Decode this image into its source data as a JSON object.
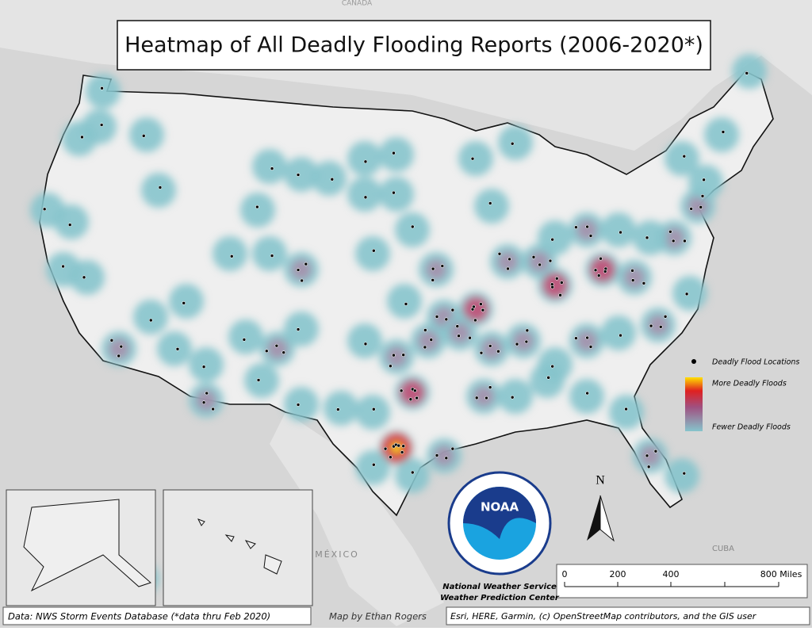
{
  "map": {
    "title": "Heatmap of All Deadly Flooding Reports (2006-2020*)",
    "places": {
      "canada": "CANADA",
      "mexico": "MÉXICO",
      "cuba": "CUBA"
    },
    "legend": {
      "locations": "Deadly Flood Locations",
      "more": "More Deadly Floods",
      "fewer": "Fewer Deadly Floods"
    },
    "north": "N",
    "scale_bar": [
      "0",
      "200",
      "400",
      "800 Miles"
    ],
    "agency": {
      "line1": "National Weather Service",
      "line2": "Weather Prediction Center",
      "logo": "NOAA"
    },
    "source": "Data: NWS Storm Events Database (*data thru Feb 2020)",
    "author": "Map by Ethan Rogers",
    "credits": "Esri, HERE, Garmin, (c) OpenStreetMap contributors, and the GIS user"
  }
}
